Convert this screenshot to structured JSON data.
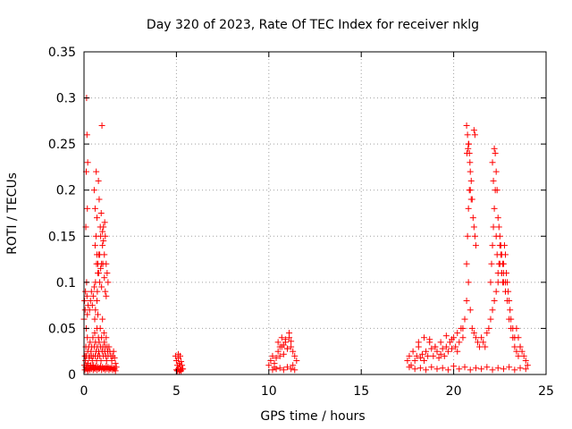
{
  "chart_data": {
    "type": "scatter",
    "title": "Day 320 of 2023, Rate Of TEC Index for receiver nklg",
    "xlabel": "GPS time / hours",
    "ylabel": "ROTI / TECUs",
    "xlim": [
      0,
      25
    ],
    "ylim": [
      0,
      0.35
    ],
    "xticks": [
      "0",
      "5",
      "10",
      "15",
      "20",
      "25"
    ],
    "yticks": [
      "0",
      "0.05",
      "0.1",
      "0.15",
      "0.2",
      "0.25",
      "0.3",
      "0.35"
    ],
    "grid": true,
    "marker": "+",
    "color": "#ff0000",
    "series": [
      {
        "x": [
          0.02,
          0.05,
          0.08,
          0.1,
          0.12,
          0.15,
          0.18,
          0.2,
          0.22,
          0.25,
          0.28,
          0.3,
          0.33,
          0.35,
          0.38,
          0.4,
          0.42,
          0.45,
          0.48,
          0.5,
          0.52,
          0.55,
          0.58,
          0.6,
          0.62,
          0.65,
          0.68,
          0.7,
          0.72,
          0.75,
          0.78,
          0.8,
          0.82,
          0.85,
          0.88,
          0.9,
          0.92,
          0.95,
          0.98,
          1.0,
          1.02,
          1.05,
          1.08,
          1.1,
          1.12,
          1.15,
          1.18,
          1.2,
          1.22,
          1.25,
          1.28,
          1.3,
          1.35,
          1.4,
          1.45,
          1.5,
          1.55,
          1.6,
          1.65,
          1.7,
          1.75,
          0.05,
          0.1,
          0.15,
          0.2,
          0.25,
          0.3,
          0.35,
          0.4,
          0.45,
          0.5,
          0.55,
          0.6,
          0.65,
          0.7,
          0.75,
          0.8,
          0.85,
          0.9,
          0.95,
          1.0,
          1.05,
          1.1,
          1.15,
          1.2,
          1.25,
          1.3,
          1.35,
          1.4,
          1.45,
          1.5,
          1.55,
          1.6,
          1.65,
          1.7,
          0.0,
          0.03,
          0.06,
          0.08,
          0.12,
          0.14,
          0.16,
          0.18,
          0.22,
          0.62,
          0.68,
          0.72,
          0.75,
          0.8,
          0.85,
          0.9,
          0.95,
          1.02,
          1.1,
          1.15,
          1.2,
          0.1,
          0.12,
          0.14,
          0.16,
          0.18,
          0.2,
          0.6,
          0.65,
          0.7,
          0.75,
          0.8,
          0.85,
          0.9,
          0.95,
          1.0,
          1.05,
          1.1,
          1.15,
          1.2,
          1.25,
          1.3,
          0.55,
          0.6,
          0.66,
          0.7,
          0.78,
          0.82,
          0.88,
          0.93,
          0.97,
          1.0,
          1.05,
          1.12,
          0.3,
          0.35,
          0.4,
          0.45,
          0.5,
          0.55,
          0.58,
          0.62,
          0.7,
          0.75
        ],
        "y": [
          0.01,
          0.02,
          0.015,
          0.03,
          0.02,
          0.01,
          0.04,
          0.025,
          0.012,
          0.03,
          0.018,
          0.02,
          0.035,
          0.01,
          0.025,
          0.02,
          0.03,
          0.015,
          0.04,
          0.02,
          0.01,
          0.03,
          0.045,
          0.02,
          0.035,
          0.025,
          0.015,
          0.05,
          0.03,
          0.02,
          0.04,
          0.025,
          0.035,
          0.02,
          0.05,
          0.03,
          0.015,
          0.04,
          0.025,
          0.06,
          0.03,
          0.02,
          0.045,
          0.035,
          0.025,
          0.03,
          0.02,
          0.04,
          0.015,
          0.03,
          0.025,
          0.02,
          0.03,
          0.025,
          0.02,
          0.015,
          0.02,
          0.025,
          0.018,
          0.012,
          0.008,
          0.005,
          0.008,
          0.006,
          0.004,
          0.007,
          0.005,
          0.009,
          0.006,
          0.008,
          0.005,
          0.007,
          0.006,
          0.009,
          0.005,
          0.008,
          0.006,
          0.007,
          0.009,
          0.005,
          0.008,
          0.006,
          0.007,
          0.005,
          0.009,
          0.006,
          0.008,
          0.005,
          0.007,
          0.006,
          0.008,
          0.005,
          0.007,
          0.006,
          0.004,
          0.06,
          0.08,
          0.07,
          0.09,
          0.05,
          0.1,
          0.085,
          0.065,
          0.075,
          0.1,
          0.12,
          0.09,
          0.11,
          0.13,
          0.1,
          0.115,
          0.095,
          0.12,
          0.105,
          0.09,
          0.085,
          0.16,
          0.22,
          0.3,
          0.26,
          0.18,
          0.23,
          0.14,
          0.15,
          0.13,
          0.12,
          0.11,
          0.13,
          0.15,
          0.12,
          0.14,
          0.16,
          0.13,
          0.15,
          0.12,
          0.11,
          0.1,
          0.2,
          0.18,
          0.22,
          0.17,
          0.21,
          0.19,
          0.16,
          0.175,
          0.27,
          0.155,
          0.145,
          0.165,
          0.07,
          0.08,
          0.09,
          0.075,
          0.085,
          0.095,
          0.06,
          0.07,
          0.08,
          0.065
        ]
      },
      {
        "x": [
          4.95,
          5.0,
          5.05,
          5.1,
          5.15,
          5.2,
          5.25,
          5.3,
          5.35,
          5.0,
          5.05,
          5.1,
          5.15,
          5.2,
          5.25,
          5.3,
          5.1,
          5.2
        ],
        "y": [
          0.02,
          0.015,
          0.01,
          0.018,
          0.012,
          0.008,
          0.014,
          0.01,
          0.006,
          0.005,
          0.004,
          0.006,
          0.003,
          0.005,
          0.004,
          0.006,
          0.022,
          0.02
        ]
      },
      {
        "x": [
          10.0,
          10.1,
          10.2,
          10.3,
          10.4,
          10.5,
          10.6,
          10.7,
          10.8,
          10.9,
          11.0,
          11.1,
          11.2,
          11.3,
          11.4,
          11.5,
          10.2,
          10.4,
          10.6,
          10.8,
          11.0,
          11.2,
          11.4,
          10.5,
          10.7,
          10.9,
          11.1,
          10.6,
          10.8,
          11.0,
          11.2,
          10.3,
          11.3
        ],
        "y": [
          0.01,
          0.015,
          0.02,
          0.012,
          0.018,
          0.025,
          0.02,
          0.03,
          0.022,
          0.035,
          0.028,
          0.04,
          0.03,
          0.025,
          0.02,
          0.015,
          0.005,
          0.006,
          0.007,
          0.005,
          0.008,
          0.006,
          0.005,
          0.035,
          0.04,
          0.038,
          0.045,
          0.03,
          0.032,
          0.028,
          0.036,
          0.008,
          0.01
        ]
      },
      {
        "x": [
          17.5,
          17.6,
          17.7,
          17.8,
          17.9,
          18.0,
          18.1,
          18.2,
          18.3,
          18.4,
          18.5,
          18.6,
          18.7,
          18.8,
          18.9,
          19.0,
          19.1,
          19.2,
          19.3,
          19.4,
          19.5,
          19.6,
          19.7,
          19.8,
          19.9,
          20.0,
          20.1,
          20.2,
          20.3,
          20.4,
          20.5,
          20.6,
          20.7,
          20.8,
          20.9,
          21.0,
          21.1,
          21.2,
          21.3,
          21.4,
          21.5,
          21.6,
          21.7,
          21.8,
          21.9,
          22.0,
          22.1,
          22.2,
          22.3,
          22.4,
          22.5,
          22.6,
          22.7,
          22.8,
          22.9,
          23.0,
          23.1,
          23.2,
          23.3,
          23.4,
          23.5,
          23.6,
          23.7,
          23.8,
          23.9,
          24.0,
          17.6,
          17.9,
          18.2,
          18.5,
          18.8,
          19.1,
          19.4,
          19.7,
          20.0,
          20.3,
          20.6,
          20.9,
          21.2,
          21.5,
          21.8,
          22.1,
          22.4,
          22.7,
          23.0,
          23.3,
          23.6,
          23.9,
          18.1,
          18.4,
          18.7,
          19.0,
          19.3,
          19.6,
          19.9,
          20.2,
          20.5,
          20.7,
          20.75,
          20.8,
          20.85,
          20.9,
          20.72,
          20.78,
          20.82,
          20.88,
          20.95,
          21.0,
          21.05,
          21.1,
          21.15,
          21.2,
          22.0,
          22.05,
          22.1,
          22.15,
          22.2,
          22.25,
          22.3,
          22.35,
          22.4,
          22.45,
          22.5,
          22.55,
          22.6,
          22.65,
          22.7,
          22.75,
          22.8,
          22.85,
          22.9,
          22.95,
          23.0,
          23.05,
          23.1,
          23.2,
          23.3,
          23.4,
          23.5,
          23.6,
          20.7,
          20.75,
          20.8,
          20.85,
          21.1,
          21.15,
          22.2,
          22.25,
          22.1,
          22.3,
          20.9,
          20.95,
          22.15,
          22.35,
          22.4,
          22.45,
          22.5,
          22.55,
          22.6,
          22.65,
          22.7,
          22.8
        ],
        "y": [
          0.015,
          0.02,
          0.01,
          0.025,
          0.015,
          0.02,
          0.03,
          0.018,
          0.022,
          0.015,
          0.025,
          0.02,
          0.035,
          0.028,
          0.02,
          0.03,
          0.025,
          0.018,
          0.022,
          0.028,
          0.02,
          0.03,
          0.025,
          0.035,
          0.028,
          0.04,
          0.03,
          0.025,
          0.035,
          0.05,
          0.04,
          0.06,
          0.08,
          0.1,
          0.07,
          0.05,
          0.045,
          0.04,
          0.035,
          0.03,
          0.04,
          0.035,
          0.03,
          0.045,
          0.05,
          0.06,
          0.07,
          0.08,
          0.09,
          0.1,
          0.12,
          0.11,
          0.1,
          0.09,
          0.08,
          0.06,
          0.05,
          0.04,
          0.03,
          0.025,
          0.02,
          0.03,
          0.025,
          0.02,
          0.015,
          0.01,
          0.008,
          0.006,
          0.007,
          0.005,
          0.008,
          0.006,
          0.007,
          0.005,
          0.009,
          0.006,
          0.008,
          0.005,
          0.007,
          0.006,
          0.008,
          0.005,
          0.007,
          0.006,
          0.008,
          0.005,
          0.007,
          0.006,
          0.035,
          0.04,
          0.038,
          0.03,
          0.035,
          0.042,
          0.038,
          0.045,
          0.05,
          0.12,
          0.15,
          0.18,
          0.2,
          0.22,
          0.24,
          0.245,
          0.25,
          0.23,
          0.21,
          0.19,
          0.17,
          0.16,
          0.15,
          0.14,
          0.1,
          0.12,
          0.14,
          0.16,
          0.18,
          0.2,
          0.15,
          0.13,
          0.11,
          0.12,
          0.14,
          0.13,
          0.11,
          0.1,
          0.12,
          0.14,
          0.13,
          0.11,
          0.1,
          0.09,
          0.08,
          0.07,
          0.06,
          0.05,
          0.04,
          0.05,
          0.04,
          0.03,
          0.27,
          0.26,
          0.25,
          0.24,
          0.265,
          0.26,
          0.245,
          0.24,
          0.23,
          0.22,
          0.2,
          0.19,
          0.21,
          0.2,
          0.17,
          0.16,
          0.15,
          0.14,
          0.13,
          0.12,
          0.11,
          0.1
        ]
      }
    ]
  }
}
